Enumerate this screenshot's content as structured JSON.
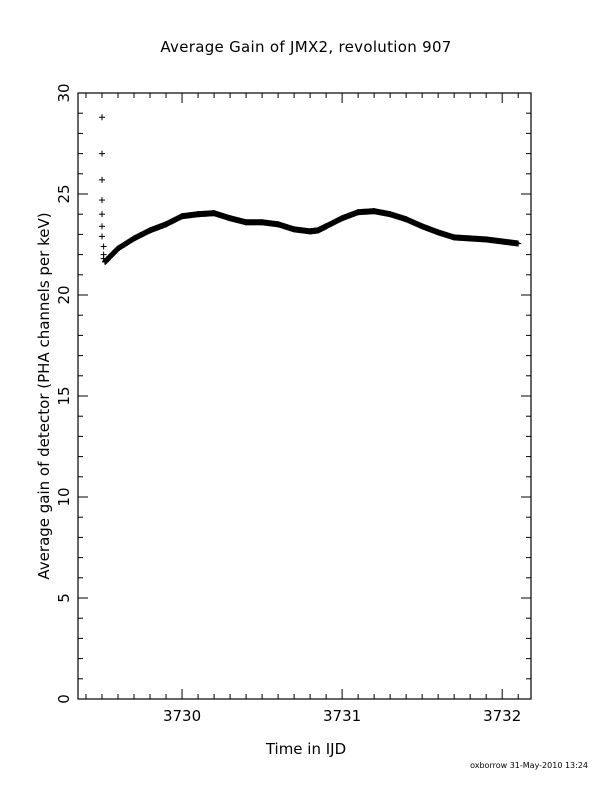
{
  "chart_data": {
    "type": "scatter",
    "title": "Average Gain of JMX2, revolution 907",
    "xlabel": "Time in IJD",
    "ylabel": "Average gain of detector (PHA channels per keV)",
    "xlim": [
      3729.35,
      3732.18
    ],
    "ylim": [
      0,
      30
    ],
    "x_ticks": [
      3730,
      3731,
      3732
    ],
    "y_ticks": [
      0,
      5,
      10,
      15,
      20,
      25,
      30
    ],
    "marker": "+",
    "grid": false,
    "series": [
      {
        "x": [
          3729.5,
          3729.5,
          3729.5,
          3729.5,
          3729.5,
          3729.5,
          3729.5,
          3729.51,
          3729.51,
          3729.51,
          3729.52,
          3729.55,
          3729.6,
          3729.7,
          3729.8,
          3729.9,
          3730.0,
          3730.1,
          3730.2,
          3730.3,
          3730.4,
          3730.5,
          3730.6,
          3730.7,
          3730.8,
          3730.85,
          3730.9,
          3731.0,
          3731.1,
          3731.2,
          3731.3,
          3731.4,
          3731.5,
          3731.6,
          3731.7,
          3731.8,
          3731.9,
          3732.0,
          3732.1
        ],
        "y": [
          28.8,
          27.0,
          25.7,
          24.7,
          24.0,
          23.4,
          22.9,
          22.4,
          22.0,
          21.8,
          21.65,
          21.9,
          22.3,
          22.8,
          23.2,
          23.5,
          23.9,
          24.0,
          24.05,
          23.8,
          23.6,
          23.6,
          23.5,
          23.25,
          23.15,
          23.2,
          23.4,
          23.8,
          24.1,
          24.15,
          24.0,
          23.75,
          23.4,
          23.1,
          22.85,
          22.8,
          22.75,
          22.65,
          22.55
        ]
      }
    ]
  },
  "footer": "oxborrow 31-May-2010 13:24"
}
